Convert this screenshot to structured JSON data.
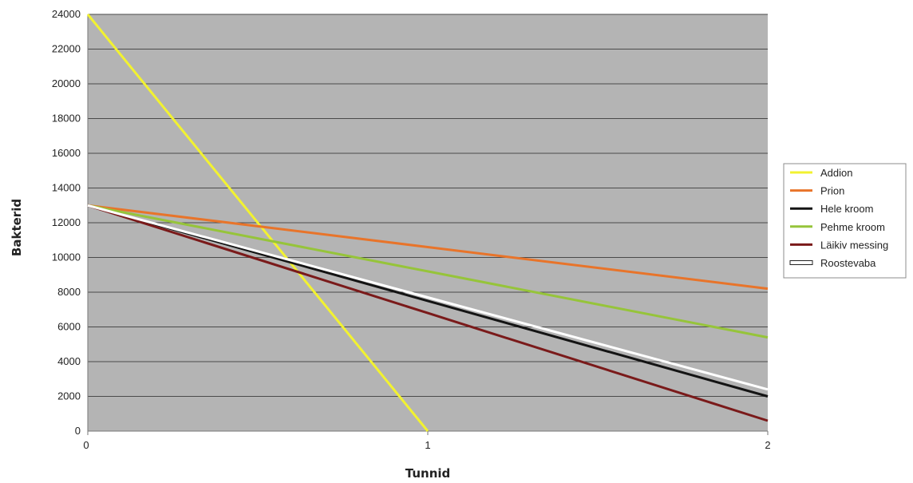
{
  "chart_data": {
    "type": "line",
    "xlabel": "Tunnid",
    "ylabel": "Bakterid",
    "x": [
      0,
      1,
      2
    ],
    "x_ticks": [
      "0",
      "1",
      "2"
    ],
    "xlim": [
      0,
      2
    ],
    "ylim": [
      0,
      24000
    ],
    "y_ticks": [
      "0",
      "2000",
      "4000",
      "6000",
      "8000",
      "10000",
      "12000",
      "14000",
      "16000",
      "18000",
      "20000",
      "22000",
      "24000"
    ],
    "grid": true,
    "legend_position": "right",
    "plot_background": "#b4b4b4",
    "series": [
      {
        "name": "Addion",
        "color": "#f2f230",
        "points": [
          [
            0,
            24000
          ],
          [
            1,
            0
          ]
        ]
      },
      {
        "name": "Prion",
        "color": "#e8742a",
        "points": [
          [
            0,
            13000
          ],
          [
            1,
            10600
          ],
          [
            2,
            8200
          ]
        ]
      },
      {
        "name": "Hele kroom",
        "color": "#141414",
        "points": [
          [
            0,
            13000
          ],
          [
            1,
            7500
          ],
          [
            2,
            2000
          ]
        ]
      },
      {
        "name": "Pehme kroom",
        "color": "#96c43a",
        "points": [
          [
            0,
            13000
          ],
          [
            1,
            9200
          ],
          [
            2,
            5400
          ]
        ]
      },
      {
        "name": "Läikiv messing",
        "color": "#7a1a1a",
        "points": [
          [
            0,
            13000
          ],
          [
            1,
            6800
          ],
          [
            2,
            600
          ]
        ]
      },
      {
        "name": "Roostevaba",
        "color": "#ffffff",
        "points": [
          [
            0,
            13000
          ],
          [
            1,
            7700
          ],
          [
            2,
            2400
          ]
        ]
      }
    ]
  }
}
